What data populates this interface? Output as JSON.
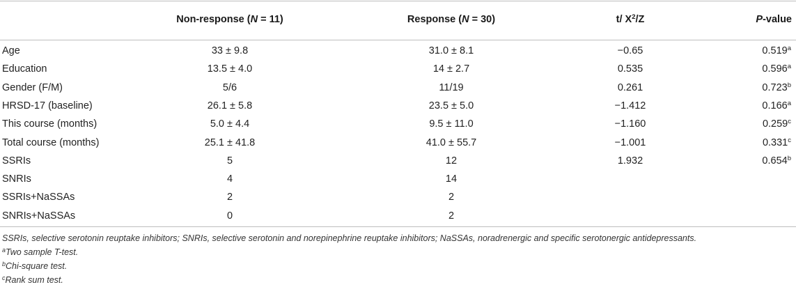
{
  "table": {
    "headers": {
      "variable": "",
      "non_response_label": "Non-response (",
      "non_response_n": "N",
      "non_response_eq": " = 11)",
      "response_label": "Response (",
      "response_n": "N",
      "response_eq": " = 30)",
      "stat_prefix": "t/ X",
      "stat_sup": "2",
      "stat_suffix": "/Z",
      "p_italic": "P",
      "p_rest": "-value"
    },
    "rows": [
      {
        "variable": "Age",
        "non_response": "33 ± 9.8",
        "response": "31.0 ± 8.1",
        "stat": "−0.65",
        "p": "0.519",
        "p_sup": "a"
      },
      {
        "variable": "Education",
        "non_response": "13.5 ± 4.0",
        "response": "14 ± 2.7",
        "stat": "0.535",
        "p": "0.596",
        "p_sup": "a"
      },
      {
        "variable": "Gender (F/M)",
        "non_response": "5/6",
        "response": "11/19",
        "stat": "0.261",
        "p": "0.723",
        "p_sup": "b"
      },
      {
        "variable": "HRSD-17 (baseline)",
        "non_response": "26.1 ± 5.8",
        "response": "23.5 ± 5.0",
        "stat": "−1.412",
        "p": "0.166",
        "p_sup": "a"
      },
      {
        "variable": "This course (months)",
        "non_response": "5.0 ± 4.4",
        "response": "9.5 ± 11.0",
        "stat": "−1.160",
        "p": "0.259",
        "p_sup": "c"
      },
      {
        "variable": "Total course (months)",
        "non_response": "25.1 ± 41.8",
        "response": "41.0 ± 55.7",
        "stat": "−1.001",
        "p": "0.331",
        "p_sup": "c"
      },
      {
        "variable": "SSRIs",
        "non_response": "5",
        "response": "12",
        "stat": "1.932",
        "p": "0.654",
        "p_sup": "b"
      },
      {
        "variable": "SNRIs",
        "non_response": "4",
        "response": "14",
        "stat": "",
        "p": "",
        "p_sup": ""
      },
      {
        "variable": "SSRIs+NaSSAs",
        "non_response": "2",
        "response": "2",
        "stat": "",
        "p": "",
        "p_sup": ""
      },
      {
        "variable": "SNRIs+NaSSAs",
        "non_response": "0",
        "response": "2",
        "stat": "",
        "p": "",
        "p_sup": ""
      }
    ]
  },
  "footnotes": {
    "abbreviations": "SSRIs, selective serotonin reuptake inhibitors; SNRIs, selective serotonin and norepinephrine reuptake inhibitors; NaSSAs, noradrenergic and specific serotonergic antidepressants.",
    "a_mark": "a",
    "a_text": "Two sample T-test.",
    "b_mark": "b",
    "b_text": "Chi-square test.",
    "c_mark": "c",
    "c_text": "Rank sum test."
  }
}
